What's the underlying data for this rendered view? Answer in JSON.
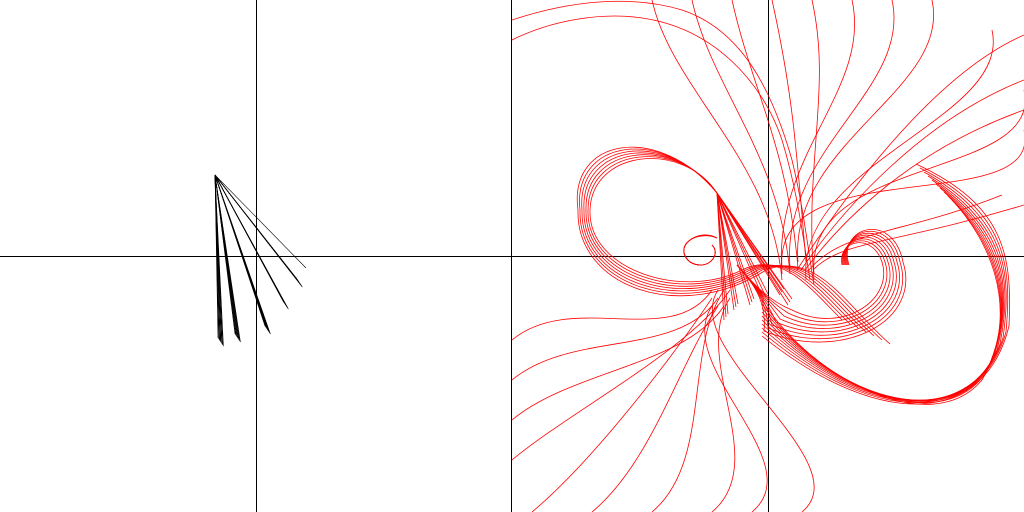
{
  "colors": {
    "background": "#ffffff",
    "axes": "#000000",
    "left_strokes": "#000000",
    "right_curves": "#ff0000",
    "divider": "#000000"
  },
  "left_panel": {
    "label": "",
    "fan_bundles": 5
  },
  "right_panel": {
    "label": "",
    "curve_groups": [
      "left-spiral",
      "right-spiral",
      "top-rays",
      "bottom-rays"
    ]
  }
}
